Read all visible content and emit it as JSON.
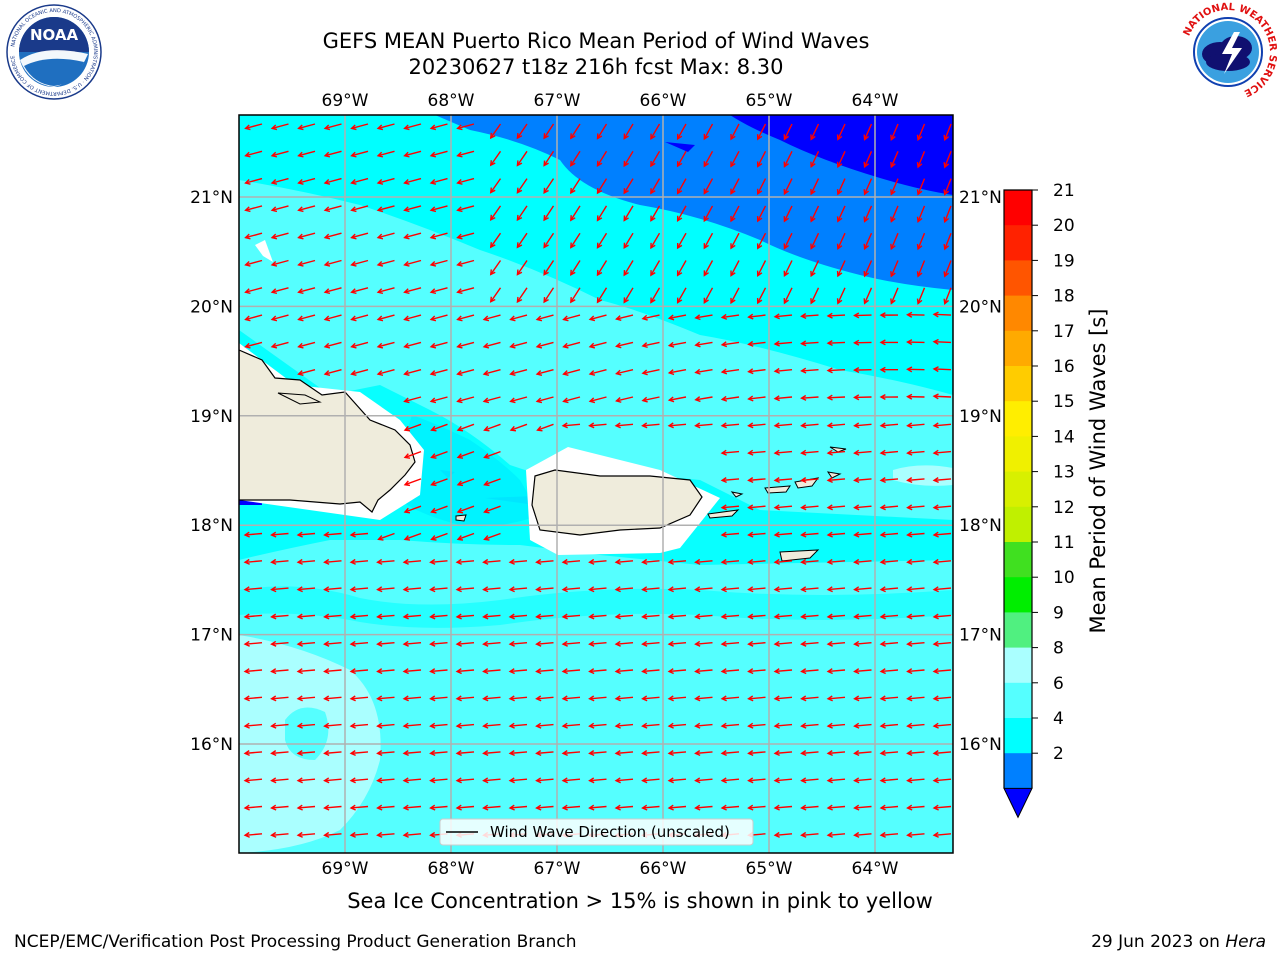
{
  "header": {
    "title_line1": "GEFS MEAN Puerto Rico Mean Period of Wind Waves",
    "title_line2": "20230627 t18z 216h fcst   Max: 8.30"
  },
  "logos": {
    "left": "NOAA",
    "left_ring_text": "NATIONAL OCEANIC AND ATMOSPHERIC ADMINISTRATION · U.S. DEPARTMENT OF COMMERCE",
    "right_ring_text": "NATIONAL WEATHER SERVICE"
  },
  "map": {
    "lon_labels": [
      "69°W",
      "68°W",
      "67°W",
      "66°W",
      "65°W",
      "64°W"
    ],
    "lat_labels": [
      "21°N",
      "20°N",
      "19°N",
      "18°N",
      "17°N",
      "16°N"
    ],
    "lon_values": [
      -69,
      -68,
      -67,
      -66,
      -65,
      -64
    ],
    "lat_values": [
      21,
      20,
      19,
      18,
      17,
      16
    ],
    "legend_label": "Wind Wave Direction (unscaled)",
    "arrow_color": "#ff0000",
    "land_color": "#efecdc"
  },
  "colorbar": {
    "label": "Mean Period of Wind Waves [s]",
    "ticks": [
      "21",
      "20",
      "19",
      "18",
      "17",
      "16",
      "15",
      "14",
      "13",
      "12",
      "11",
      "10",
      "9",
      "8",
      "6",
      "4",
      "2"
    ],
    "colors_top_to_bottom": [
      "#ff0000",
      "#ff2200",
      "#ff5500",
      "#ff8800",
      "#ffaa00",
      "#ffcc00",
      "#ffee00",
      "#f0f000",
      "#d8f000",
      "#c0f000",
      "#40e020",
      "#00ee00",
      "#50f080",
      "#aaffff",
      "#55ffff",
      "#00ffff",
      "#0080ff"
    ],
    "extend_color": "#0000ff"
  },
  "footer": {
    "note": "Sea Ice Concentration > 15% is shown in pink to yellow",
    "left": "NCEP/EMC/Verification Post Processing Product Generation Branch",
    "right_date": "29 Jun 2023 on ",
    "right_host": "Hera"
  }
}
